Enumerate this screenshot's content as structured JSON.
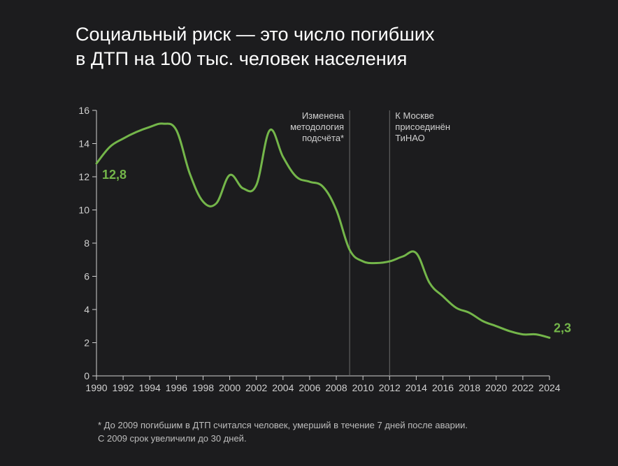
{
  "title_line1": "Социальный риск — это число погибших",
  "title_line2": "в ДТП на 100 тыс. человек населения",
  "chart": {
    "type": "line",
    "background_color": "#1c1c1e",
    "axis_color": "#d0d0d0",
    "axis_fontsize": 14,
    "series_color": "#74b64a",
    "series_width": 3,
    "xlim": [
      1990,
      2024
    ],
    "ylim": [
      0,
      16
    ],
    "xtick_step": 2,
    "ytick_step": 2,
    "xticks": [
      1990,
      1992,
      1994,
      1996,
      1998,
      2000,
      2002,
      2004,
      2006,
      2008,
      2010,
      2012,
      2014,
      2016,
      2018,
      2020,
      2022,
      2024
    ],
    "yticks": [
      0,
      2,
      4,
      6,
      8,
      10,
      12,
      14,
      16
    ],
    "points": [
      {
        "x": 1990,
        "y": 12.8
      },
      {
        "x": 1991,
        "y": 13.8
      },
      {
        "x": 1992,
        "y": 14.3
      },
      {
        "x": 1993,
        "y": 14.7
      },
      {
        "x": 1994,
        "y": 15.0
      },
      {
        "x": 1995,
        "y": 15.2
      },
      {
        "x": 1996,
        "y": 14.8
      },
      {
        "x": 1997,
        "y": 12.2
      },
      {
        "x": 1998,
        "y": 10.5
      },
      {
        "x": 1999,
        "y": 10.4
      },
      {
        "x": 2000,
        "y": 12.1
      },
      {
        "x": 2001,
        "y": 11.3
      },
      {
        "x": 2002,
        "y": 11.5
      },
      {
        "x": 2003,
        "y": 14.8
      },
      {
        "x": 2004,
        "y": 13.2
      },
      {
        "x": 2005,
        "y": 12.0
      },
      {
        "x": 2006,
        "y": 11.7
      },
      {
        "x": 2007,
        "y": 11.4
      },
      {
        "x": 2008,
        "y": 10.0
      },
      {
        "x": 2009,
        "y": 7.6
      },
      {
        "x": 2010,
        "y": 6.9
      },
      {
        "x": 2011,
        "y": 6.8
      },
      {
        "x": 2012,
        "y": 6.9
      },
      {
        "x": 2013,
        "y": 7.2
      },
      {
        "x": 2014,
        "y": 7.4
      },
      {
        "x": 2015,
        "y": 5.6
      },
      {
        "x": 2016,
        "y": 4.8
      },
      {
        "x": 2017,
        "y": 4.1
      },
      {
        "x": 2018,
        "y": 3.8
      },
      {
        "x": 2019,
        "y": 3.3
      },
      {
        "x": 2020,
        "y": 3.0
      },
      {
        "x": 2021,
        "y": 2.7
      },
      {
        "x": 2022,
        "y": 2.5
      },
      {
        "x": 2023,
        "y": 2.5
      },
      {
        "x": 2024,
        "y": 2.3
      }
    ],
    "start_label": "12,8",
    "end_label": "2,3",
    "value_label_color": "#74b64a",
    "value_label_fontsize": 18,
    "vlines": [
      {
        "x": 2009,
        "color": "#6b6b6b",
        "label_l1": "Изменена",
        "label_l2": "методология",
        "label_l3": "подсчёта*",
        "align": "end"
      },
      {
        "x": 2012,
        "color": "#6b6b6b",
        "label_l1": "К Москве",
        "label_l2": "присоединён",
        "label_l3": "ТиНАО",
        "align": "start"
      }
    ]
  },
  "footnote_line1": "* До 2009 погибшим в ДТП считался человек, умерший в течение 7 дней после аварии.",
  "footnote_line2": "С 2009 срок увеличили до 30 дней."
}
